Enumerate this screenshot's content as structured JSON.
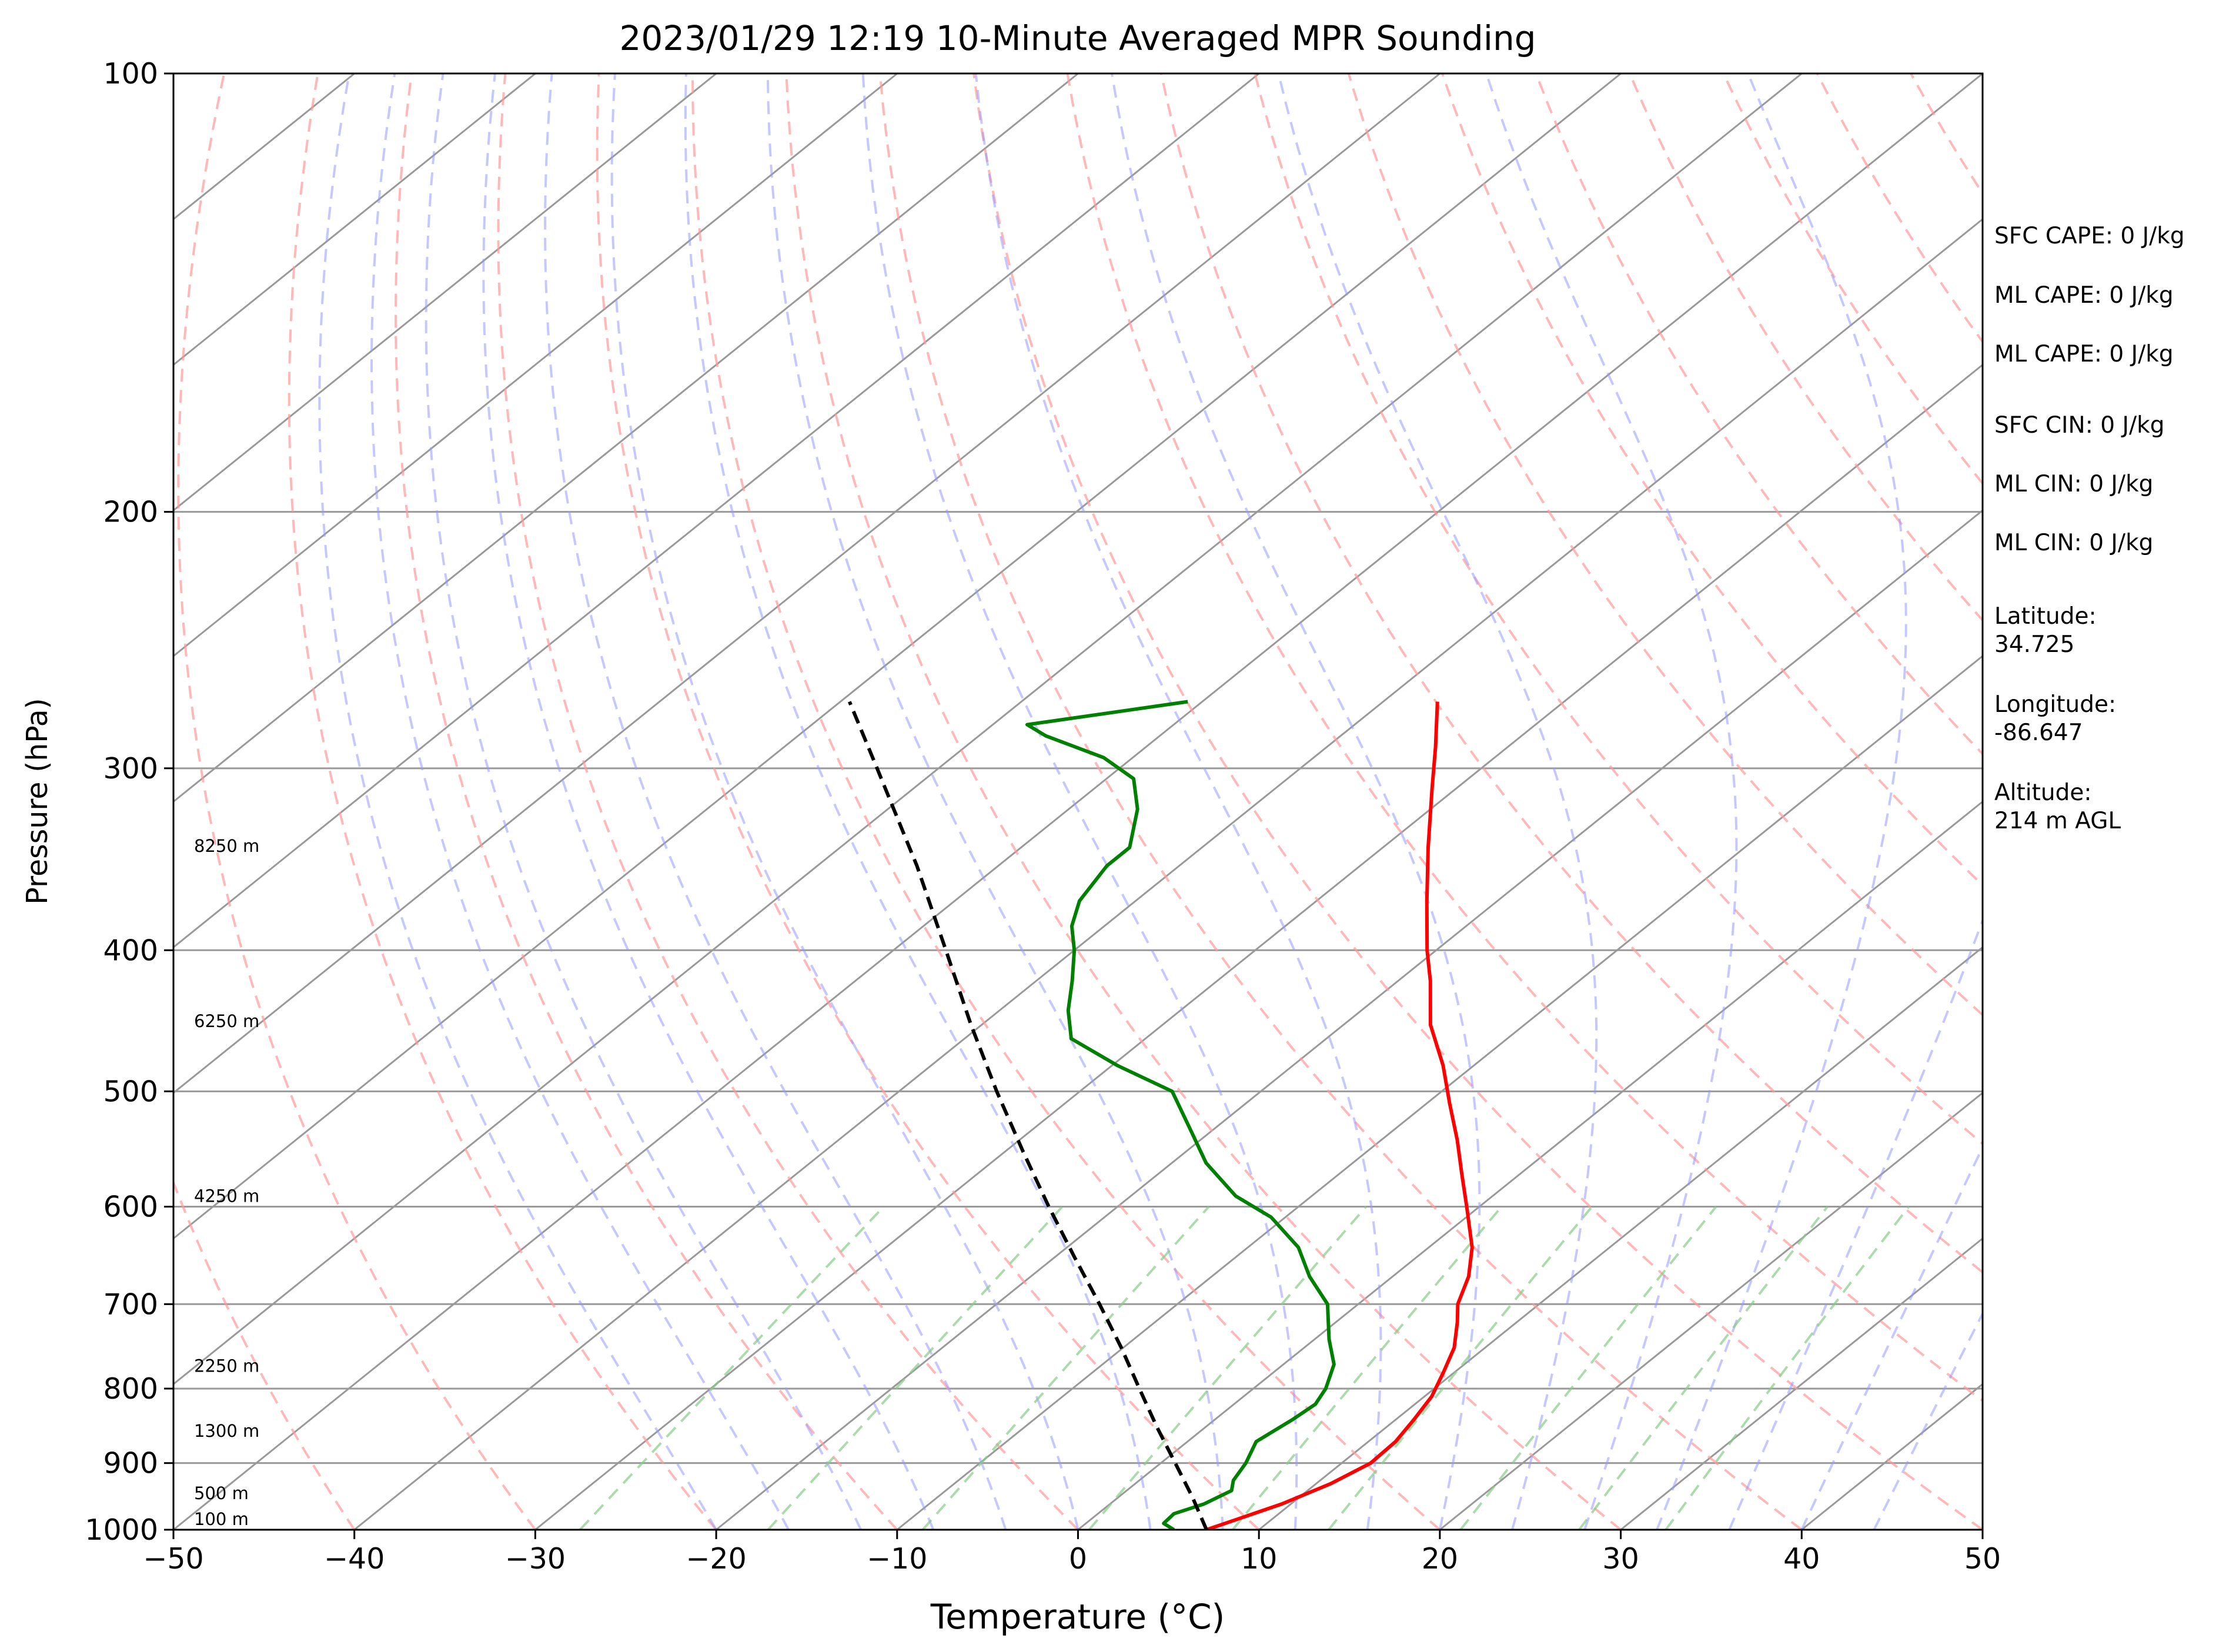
{
  "chart_data": {
    "type": "line",
    "title": "2023/01/29 12:19 10-Minute Averaged MPR Sounding",
    "xlabel": "Temperature (°C)",
    "ylabel": "Pressure (hPa)",
    "xlim": [
      -50,
      50
    ],
    "ylim": [
      1000,
      100
    ],
    "y_scale": "log",
    "skew": true,
    "grid": true,
    "x_ticks": [
      "−50",
      "−40",
      "−30",
      "−20",
      "−10",
      "0",
      "10",
      "20",
      "30",
      "40",
      "50"
    ],
    "y_ticks": [
      "100",
      "200",
      "300",
      "400",
      "500",
      "600",
      "700",
      "800",
      "900",
      "1000"
    ],
    "height_labels": [
      {
        "p": 1000,
        "label": "100 m"
      },
      {
        "p": 960,
        "label": "500 m"
      },
      {
        "p": 870,
        "label": "1300 m"
      },
      {
        "p": 785,
        "label": "2250 m"
      },
      {
        "p": 600,
        "label": "4250 m"
      },
      {
        "p": 455,
        "label": "6250 m"
      },
      {
        "p": 345,
        "label": "8250 m"
      }
    ],
    "series": [
      {
        "color": "#ff0000",
        "points": [
          [
            1000,
            7.1
          ],
          [
            985,
            8.0
          ],
          [
            960,
            9.5
          ],
          [
            930,
            10.8
          ],
          [
            900,
            11.6
          ],
          [
            870,
            11.5
          ],
          [
            840,
            11.0
          ],
          [
            810,
            10.4
          ],
          [
            780,
            9.4
          ],
          [
            750,
            8.3
          ],
          [
            720,
            6.7
          ],
          [
            700,
            5.5
          ],
          [
            670,
            4.2
          ],
          [
            640,
            2.4
          ],
          [
            600,
            -0.7
          ],
          [
            570,
            -3.2
          ],
          [
            540,
            -5.8
          ],
          [
            510,
            -8.7
          ],
          [
            480,
            -11.7
          ],
          [
            450,
            -15.2
          ],
          [
            420,
            -18.2
          ],
          [
            400,
            -20.5
          ],
          [
            370,
            -23.9
          ],
          [
            340,
            -27.5
          ],
          [
            310,
            -31.3
          ],
          [
            290,
            -34.0
          ],
          [
            270,
            -37.0
          ]
        ]
      },
      {
        "color": "#008000",
        "points": [
          [
            1000,
            5.3
          ],
          [
            990,
            4.3
          ],
          [
            975,
            4.2
          ],
          [
            960,
            5.2
          ],
          [
            940,
            5.8
          ],
          [
            925,
            5.2
          ],
          [
            900,
            4.7
          ],
          [
            870,
            3.8
          ],
          [
            840,
            4.3
          ],
          [
            820,
            4.5
          ],
          [
            800,
            4.0
          ],
          [
            770,
            2.8
          ],
          [
            740,
            0.8
          ],
          [
            700,
            -1.7
          ],
          [
            670,
            -4.6
          ],
          [
            640,
            -7.2
          ],
          [
            610,
            -10.8
          ],
          [
            590,
            -14.2
          ],
          [
            560,
            -18.1
          ],
          [
            530,
            -21.4
          ],
          [
            500,
            -24.9
          ],
          [
            480,
            -29.7
          ],
          [
            460,
            -34.1
          ],
          [
            440,
            -36.2
          ],
          [
            420,
            -38.0
          ],
          [
            400,
            -40.0
          ],
          [
            385,
            -41.8
          ],
          [
            370,
            -43.1
          ],
          [
            350,
            -44.0
          ],
          [
            340,
            -44.0
          ],
          [
            320,
            -46.2
          ],
          [
            305,
            -48.5
          ],
          [
            295,
            -51.6
          ],
          [
            285,
            -56.3
          ],
          [
            280,
            -58.1
          ],
          [
            270,
            -50.8
          ]
        ]
      },
      {
        "color": "#000000",
        "dashed": true,
        "points": [
          [
            1000,
            7.1
          ],
          [
            950,
            4.1
          ],
          [
            900,
            0.8
          ],
          [
            850,
            -2.7
          ],
          [
            800,
            -6.3
          ],
          [
            750,
            -10.1
          ],
          [
            700,
            -14.3
          ],
          [
            650,
            -18.9
          ],
          [
            600,
            -23.8
          ],
          [
            550,
            -29.0
          ],
          [
            500,
            -34.6
          ],
          [
            450,
            -40.6
          ],
          [
            400,
            -47.1
          ],
          [
            350,
            -54.5
          ],
          [
            300,
            -63.4
          ],
          [
            270,
            -69.5
          ]
        ]
      }
    ]
  },
  "info": {
    "sfc_cape": "SFC CAPE: 0 J/kg",
    "ml_cape_1": "ML CAPE: 0 J/kg",
    "ml_cape_2": "ML CAPE: 0 J/kg",
    "sfc_cin": "SFC CIN: 0 J/kg",
    "ml_cin_1": "ML CIN: 0 J/kg",
    "ml_cin_2": "ML CIN: 0 J/kg",
    "latitude": "Latitude:\n34.725",
    "longitude": "Longitude:\n-86.647",
    "altitude": "Altitude:\n214 m AGL"
  },
  "colors": {
    "temperature": "#ff0000",
    "dewpoint": "#008000",
    "parcel": "#000000",
    "dry_adiabat": "#ff9999",
    "moist_adiabat": "#9999ff",
    "mixing_ratio": "#88cc88",
    "isotherm": "#999999"
  }
}
